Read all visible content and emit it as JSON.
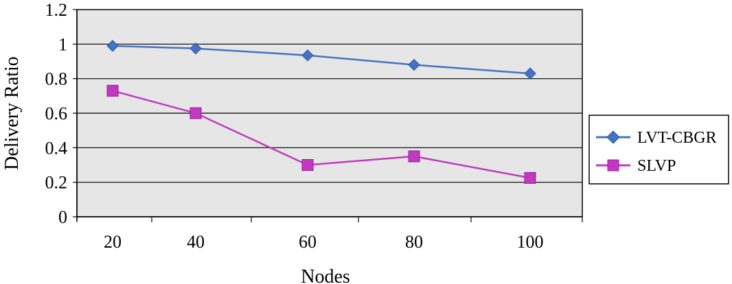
{
  "chart_data": {
    "type": "line",
    "title": "",
    "xlabel": "Nodes",
    "ylabel": "Delivery Ratio",
    "categories": [
      "20",
      "40",
      "60",
      "80",
      "100"
    ],
    "ylim": [
      0,
      1.2
    ],
    "yticks": [
      "0",
      "0.2",
      "0.4",
      "0.6",
      "0.8",
      "1",
      "1.2"
    ],
    "grid": "horizontal",
    "legend_position": "right",
    "plot_background": "#e6e6e6",
    "series": [
      {
        "name": "LVT-CBGR",
        "marker": "diamond",
        "color": "#4472c4",
        "values": [
          0.99,
          0.975,
          0.935,
          0.88,
          0.83
        ]
      },
      {
        "name": "SLVP",
        "marker": "square",
        "color": "#c238c2",
        "values": [
          0.73,
          0.6,
          0.3,
          0.35,
          0.225
        ]
      }
    ]
  }
}
